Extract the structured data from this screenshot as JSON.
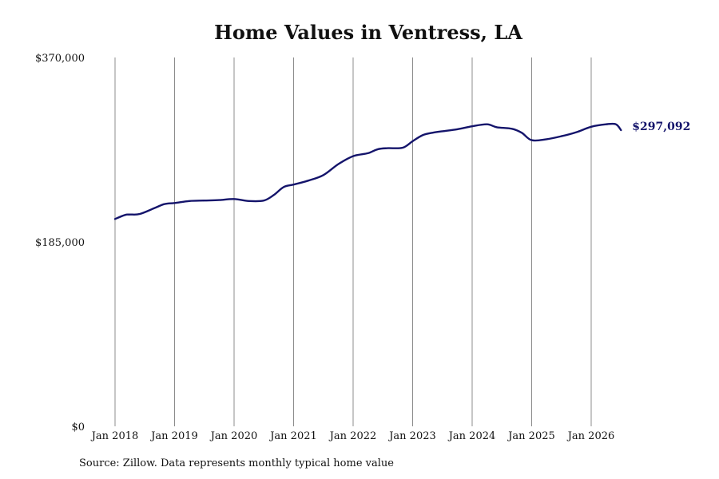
{
  "chart_data": {
    "type": "line",
    "title": "Home Values in Ventress, LA",
    "xlabel": "",
    "ylabel": "",
    "ylim": [
      0,
      370000
    ],
    "y_ticks": [
      "$370,000",
      "$185,000",
      "$0"
    ],
    "y_tick_values": [
      370000,
      185000,
      0
    ],
    "x_ticks": [
      "Jan 2018",
      "Jan 2019",
      "Jan 2020",
      "Jan 2021",
      "Jan 2022",
      "Jan 2023",
      "Jan 2024",
      "Jan 2025",
      "Jan 2026"
    ],
    "x_tick_years": [
      2018,
      2019,
      2020,
      2021,
      2022,
      2023,
      2024,
      2025,
      2026
    ],
    "grid": "vertical",
    "line_color": "#14146b",
    "series": [
      {
        "x": [
          2018.0,
          2018.1667,
          2018.25,
          2018.4167,
          2018.6667,
          2018.8333,
          2019.0,
          2019.25,
          2019.5,
          2019.75,
          2020.0,
          2020.25,
          2020.5,
          2020.6667,
          2020.8333,
          2021.0,
          2021.25,
          2021.5,
          2021.75,
          2022.0,
          2022.25,
          2022.4167,
          2022.5833,
          2022.8333,
          2023.0,
          2023.1667,
          2023.3333,
          2023.5,
          2023.75,
          2024.0,
          2024.25,
          2024.4167,
          2024.6667,
          2024.8333,
          2025.0,
          2025.25,
          2025.5,
          2025.75,
          2026.0,
          2026.25,
          2026.4167,
          2026.5
        ],
        "values": [
          208000,
          212000,
          212500,
          213000,
          219000,
          223000,
          224000,
          226000,
          226500,
          227000,
          228000,
          226000,
          226500,
          232000,
          240000,
          242500,
          246500,
          252000,
          263000,
          271000,
          274000,
          278000,
          279000,
          279500,
          286000,
          292000,
          294500,
          296000,
          298000,
          301000,
          303000,
          300000,
          298500,
          294500,
          287000,
          288000,
          291000,
          295000,
          300500,
          303000,
          303000,
          297092
        ]
      }
    ],
    "last_value_label": "$297,092",
    "source": "Source: Zillow. Data represents monthly typical home value"
  }
}
